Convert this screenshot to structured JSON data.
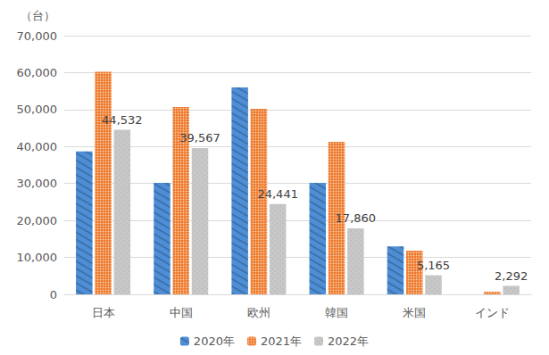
{
  "chart_data": {
    "type": "bar",
    "y_label": "（台）",
    "categories": [
      "日本",
      "中国",
      "欧州",
      "韓国",
      "米国",
      "インド"
    ],
    "series": [
      {
        "name": "2020年",
        "color": "#4e8ed6",
        "values": [
          38700,
          30200,
          56000,
          30200,
          13000,
          null
        ]
      },
      {
        "name": "2021年",
        "color": "#ee7d31",
        "values": [
          60200,
          50700,
          50200,
          41300,
          11800,
          700
        ]
      },
      {
        "name": "2022年",
        "color": "#c8c8c8",
        "values": [
          44532,
          39567,
          24441,
          17860,
          5165,
          2292
        ],
        "data_labels": true,
        "value_labels": [
          "44,532",
          "39,567",
          "24,441",
          "17,860",
          "5,165",
          "2,292"
        ]
      }
    ],
    "ylim": [
      0,
      70000
    ],
    "yticks": [
      0,
      {
        "value": 10000,
        "label": "10,000"
      },
      {
        "value": 20000,
        "label": "20,000"
      },
      {
        "value": 30000,
        "label": "30,000"
      },
      {
        "value": 40000,
        "label": "40,000"
      },
      {
        "value": 50000,
        "label": "50,000"
      },
      {
        "value": 60000,
        "label": "60,000"
      },
      {
        "value": 70000,
        "label": "70,000"
      }
    ],
    "grid": true,
    "legend": "bottom"
  }
}
